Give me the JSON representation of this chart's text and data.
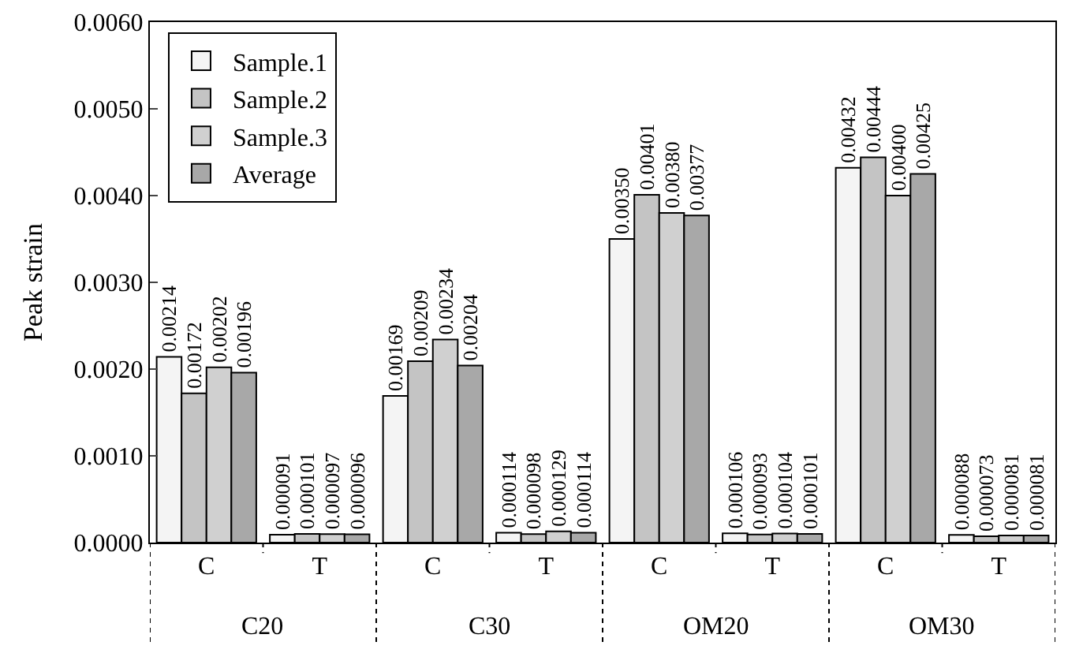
{
  "chart_data": {
    "type": "bar",
    "ylabel": "Peak strain",
    "categories": [
      "C",
      "T",
      "C",
      "T",
      "C",
      "T",
      "C",
      "T"
    ],
    "annotations": [
      "C20",
      "C30",
      "OM20",
      "OM30"
    ],
    "series": [
      {
        "name": "Sample.1",
        "color": "#f4f4f4",
        "values": [
          0.00214,
          9.1e-05,
          0.00169,
          0.000114,
          0.0035,
          0.000106,
          0.00432,
          8.8e-05
        ],
        "value_labels": [
          "0.00214",
          "0.000091",
          "0.00169",
          "0.000114",
          "0.00350",
          "0.000106",
          "0.00432",
          "0.000088"
        ]
      },
      {
        "name": "Sample.2",
        "color": "#c4c4c4",
        "values": [
          0.00172,
          0.000101,
          0.00209,
          9.8e-05,
          0.00401,
          9.3e-05,
          0.00444,
          7.3e-05
        ],
        "value_labels": [
          "0.00172",
          "0.000101",
          "0.00209",
          "0.000098",
          "0.00401",
          "0.000093",
          "0.00444",
          "0.000073"
        ]
      },
      {
        "name": "Sample.3",
        "color": "#d0d0d0",
        "values": [
          0.00202,
          9.7e-05,
          0.00234,
          0.000129,
          0.0038,
          0.000104,
          0.004,
          8.1e-05
        ],
        "value_labels": [
          "0.00202",
          "0.000097",
          "0.00234",
          "0.000129",
          "0.00380",
          "0.000104",
          "0.00400",
          "0.000081"
        ]
      },
      {
        "name": "Average",
        "color": "#a8a8a8",
        "values": [
          0.00196,
          9.6e-05,
          0.00204,
          0.000114,
          0.00377,
          0.000101,
          0.00425,
          8.1e-05
        ],
        "value_labels": [
          "0.00196",
          "0.000096",
          "0.00204",
          "0.000114",
          "0.00377",
          "0.000101",
          "0.00425",
          "0.000081"
        ]
      }
    ],
    "ylim": [
      0,
      0.006
    ],
    "yticks": [
      {
        "value": 0,
        "label": "0.0000"
      },
      {
        "value": 0.001,
        "label": "0.0010"
      },
      {
        "value": 0.002,
        "label": "0.0020"
      },
      {
        "value": 0.003,
        "label": "0.0030"
      },
      {
        "value": 0.004,
        "label": "0.0040"
      },
      {
        "value": 0.005,
        "label": "0.0050"
      },
      {
        "value": 0.006,
        "label": "0.0060"
      }
    ],
    "legend": "top left"
  }
}
